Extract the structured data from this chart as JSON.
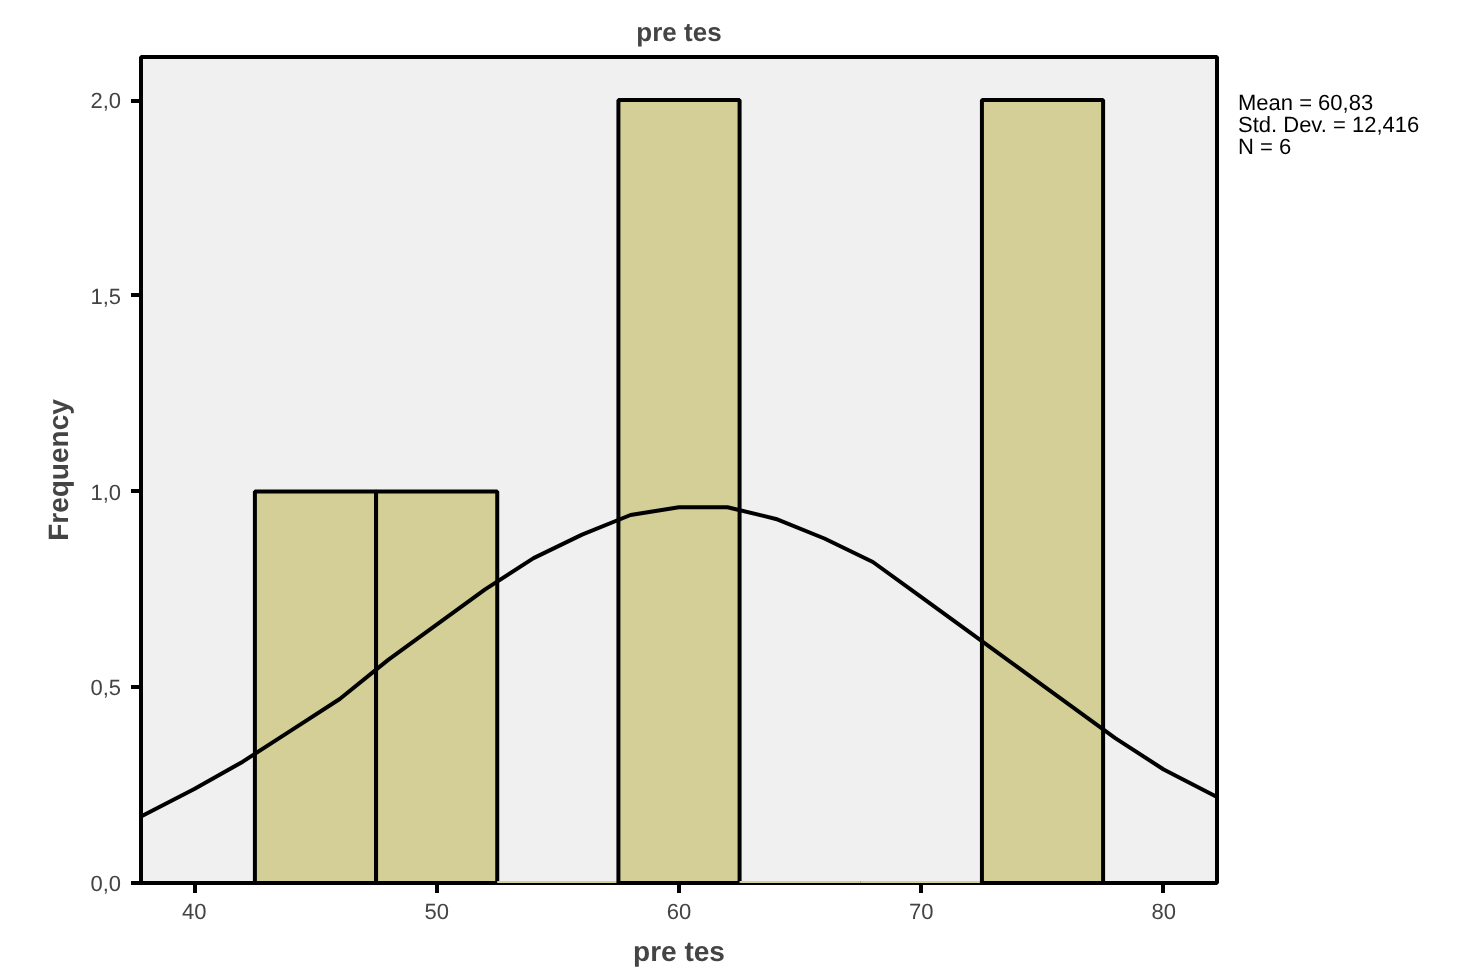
{
  "chart_data": {
    "type": "histogram",
    "title": "pre tes",
    "xlabel": "pre tes",
    "ylabel": "Frequency",
    "bins": [
      42.5,
      47.5,
      52.5,
      57.5,
      62.5,
      67.5,
      72.5,
      77.5
    ],
    "values": [
      1,
      1,
      0,
      2,
      0,
      0,
      2
    ],
    "color": "#d4cf96",
    "series": [
      {
        "type": "line",
        "color": "#000000",
        "x": [
          37.8,
          40,
          42,
          44,
          46,
          48,
          50,
          52,
          54,
          56,
          58,
          60,
          62,
          64,
          66,
          68,
          70,
          72,
          74,
          76,
          78,
          80,
          82.2
        ],
        "values": [
          0.17,
          0.24,
          0.31,
          0.39,
          0.47,
          0.57,
          0.66,
          0.75,
          0.83,
          0.89,
          0.94,
          0.96,
          0.96,
          0.93,
          0.88,
          0.82,
          0.73,
          0.64,
          0.55,
          0.46,
          0.37,
          0.29,
          0.22
        ]
      }
    ],
    "xlim": [
      37.8,
      82.2
    ],
    "ylim": [
      0,
      2.11
    ],
    "xticks": [
      40,
      50,
      60,
      70,
      80
    ],
    "yticks": [
      {
        "value": 0,
        "label": "0,0"
      },
      {
        "value": 0.5,
        "label": "0,5"
      },
      {
        "value": 1,
        "label": "1,0"
      },
      {
        "value": 1.5,
        "label": "1,5"
      },
      {
        "value": 2,
        "label": "2,0"
      }
    ],
    "annotations": [
      "Mean = 60,83",
      "Std. Dev. = 12,416",
      "N = 6"
    ],
    "grid": false
  }
}
